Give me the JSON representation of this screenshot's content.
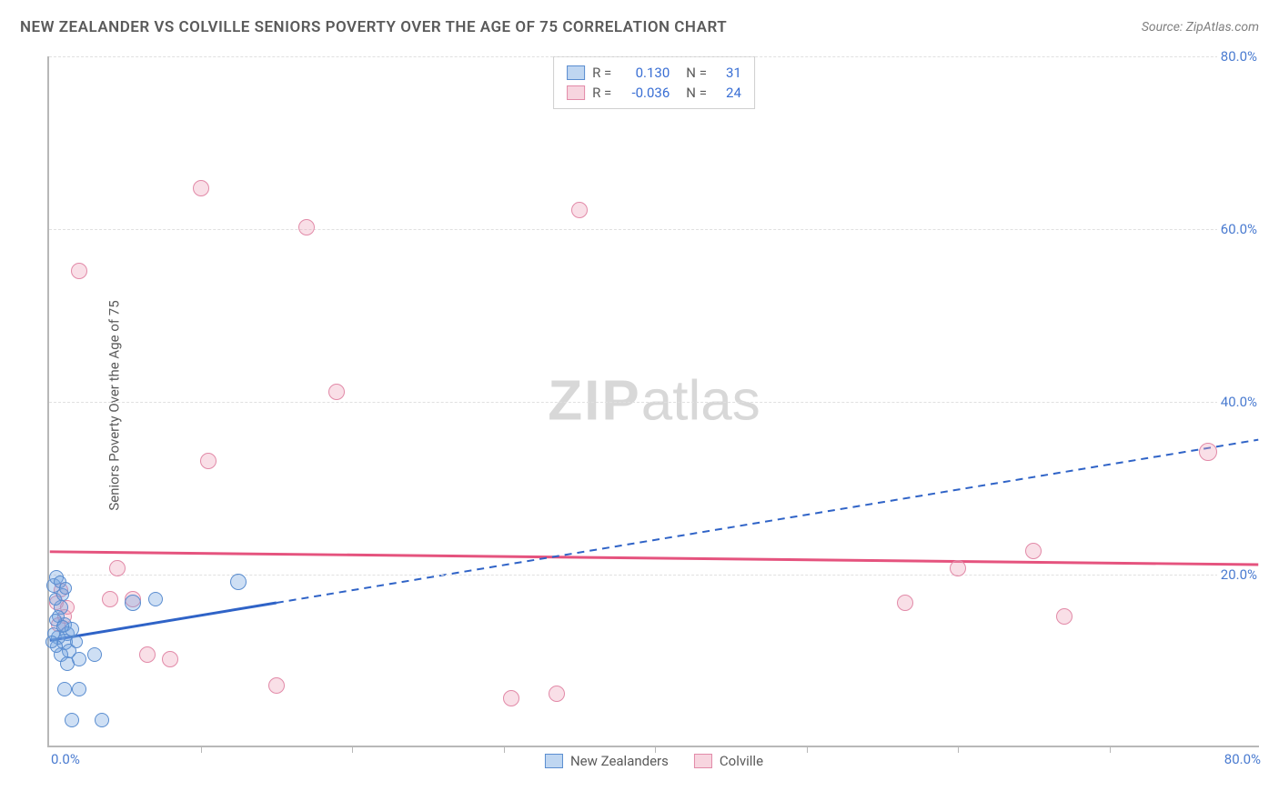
{
  "header": {
    "title": "NEW ZEALANDER VS COLVILLE SENIORS POVERTY OVER THE AGE OF 75 CORRELATION CHART",
    "source": "Source: ZipAtlas.com"
  },
  "axes": {
    "y_title": "Seniors Poverty Over the Age of 75",
    "xlim": [
      0,
      80
    ],
    "ylim": [
      0,
      80
    ],
    "y_ticks": [
      20,
      40,
      60,
      80
    ],
    "y_tick_labels": [
      "20.0%",
      "40.0%",
      "60.0%",
      "80.0%"
    ],
    "x_tick_step": 10,
    "x_min_label": "0.0%",
    "x_max_label": "80.0%",
    "grid_color": "#e0e0e0",
    "axis_color": "#b8b8b8",
    "label_color": "#4a7bd0",
    "label_fontsize": 15
  },
  "watermark": {
    "text_bold": "ZIP",
    "text_light": "atlas",
    "color": "#d8d8d8"
  },
  "legend_stats": {
    "rows": [
      {
        "series": "blue",
        "r_label": "R =",
        "r": "0.130",
        "n_label": "N =",
        "n": "31"
      },
      {
        "series": "pink",
        "r_label": "R =",
        "r": "-0.036",
        "n_label": "N =",
        "n": "24"
      }
    ]
  },
  "bottom_legend": {
    "items": [
      {
        "series": "blue",
        "label": "New Zealanders"
      },
      {
        "series": "pink",
        "label": "Colville"
      }
    ]
  },
  "series": {
    "blue": {
      "color_fill": "rgba(114,163,224,0.35)",
      "color_stroke": "#5a8dd0",
      "reg_color": "#2f63c7",
      "reg_solid_xmax": 15,
      "reg": {
        "x1": 0,
        "y1": 12.2,
        "x2": 80,
        "y2": 35.5
      },
      "points": [
        {
          "x": 0.3,
          "y": 18.5,
          "r": 8
        },
        {
          "x": 0.5,
          "y": 19.5,
          "r": 8
        },
        {
          "x": 0.8,
          "y": 16.0,
          "r": 8
        },
        {
          "x": 1.0,
          "y": 14.0,
          "r": 8
        },
        {
          "x": 1.2,
          "y": 13.0,
          "r": 8
        },
        {
          "x": 1.0,
          "y": 12.0,
          "r": 9
        },
        {
          "x": 0.6,
          "y": 12.5,
          "r": 8
        },
        {
          "x": 1.3,
          "y": 11.0,
          "r": 8
        },
        {
          "x": 1.5,
          "y": 13.5,
          "r": 8
        },
        {
          "x": 0.8,
          "y": 10.5,
          "r": 8
        },
        {
          "x": 1.2,
          "y": 9.5,
          "r": 8
        },
        {
          "x": 2.0,
          "y": 10.0,
          "r": 8
        },
        {
          "x": 3.0,
          "y": 10.5,
          "r": 8
        },
        {
          "x": 1.0,
          "y": 6.5,
          "r": 8
        },
        {
          "x": 2.0,
          "y": 6.5,
          "r": 8
        },
        {
          "x": 1.5,
          "y": 3.0,
          "r": 8
        },
        {
          "x": 3.5,
          "y": 3.0,
          "r": 8
        },
        {
          "x": 5.5,
          "y": 16.5,
          "r": 9
        },
        {
          "x": 7.0,
          "y": 17.0,
          "r": 8
        },
        {
          "x": 12.5,
          "y": 19.0,
          "r": 9
        },
        {
          "x": 0.4,
          "y": 17.0,
          "r": 7
        },
        {
          "x": 0.6,
          "y": 15.0,
          "r": 7
        },
        {
          "x": 0.9,
          "y": 17.5,
          "r": 7
        },
        {
          "x": 0.3,
          "y": 13.0,
          "r": 7
        },
        {
          "x": 0.5,
          "y": 11.5,
          "r": 7
        },
        {
          "x": 1.8,
          "y": 12.0,
          "r": 7
        },
        {
          "x": 0.7,
          "y": 19.0,
          "r": 7
        },
        {
          "x": 1.1,
          "y": 18.2,
          "r": 7
        },
        {
          "x": 0.4,
          "y": 14.5,
          "r": 7
        },
        {
          "x": 0.2,
          "y": 12.0,
          "r": 7
        },
        {
          "x": 0.9,
          "y": 13.8,
          "r": 7
        }
      ]
    },
    "pink": {
      "color_fill": "rgba(238,162,185,0.35)",
      "color_stroke": "#e28aa8",
      "reg_color": "#e5537e",
      "reg": {
        "x1": 0,
        "y1": 22.5,
        "x2": 80,
        "y2": 21.0
      },
      "points": [
        {
          "x": 2.0,
          "y": 55.0,
          "r": 9
        },
        {
          "x": 10.0,
          "y": 64.5,
          "r": 9
        },
        {
          "x": 17.0,
          "y": 60.0,
          "r": 9
        },
        {
          "x": 19.0,
          "y": 41.0,
          "r": 9
        },
        {
          "x": 35.0,
          "y": 62.0,
          "r": 9
        },
        {
          "x": 10.5,
          "y": 33.0,
          "r": 9
        },
        {
          "x": 4.5,
          "y": 20.5,
          "r": 9
        },
        {
          "x": 4.0,
          "y": 17.0,
          "r": 9
        },
        {
          "x": 5.5,
          "y": 17.0,
          "r": 9
        },
        {
          "x": 6.5,
          "y": 10.5,
          "r": 9
        },
        {
          "x": 8.0,
          "y": 10.0,
          "r": 9
        },
        {
          "x": 15.0,
          "y": 7.0,
          "r": 9
        },
        {
          "x": 30.5,
          "y": 5.5,
          "r": 9
        },
        {
          "x": 33.5,
          "y": 6.0,
          "r": 9
        },
        {
          "x": 56.5,
          "y": 16.5,
          "r": 9
        },
        {
          "x": 60.0,
          "y": 20.5,
          "r": 9
        },
        {
          "x": 65.0,
          "y": 22.5,
          "r": 9
        },
        {
          "x": 67.0,
          "y": 15.0,
          "r": 9
        },
        {
          "x": 76.5,
          "y": 34.0,
          "r": 10
        },
        {
          "x": 0.5,
          "y": 16.5,
          "r": 8
        },
        {
          "x": 0.8,
          "y": 18.0,
          "r": 8
        },
        {
          "x": 1.0,
          "y": 15.0,
          "r": 8
        },
        {
          "x": 0.6,
          "y": 14.0,
          "r": 8
        },
        {
          "x": 1.2,
          "y": 16.0,
          "r": 8
        }
      ]
    }
  }
}
